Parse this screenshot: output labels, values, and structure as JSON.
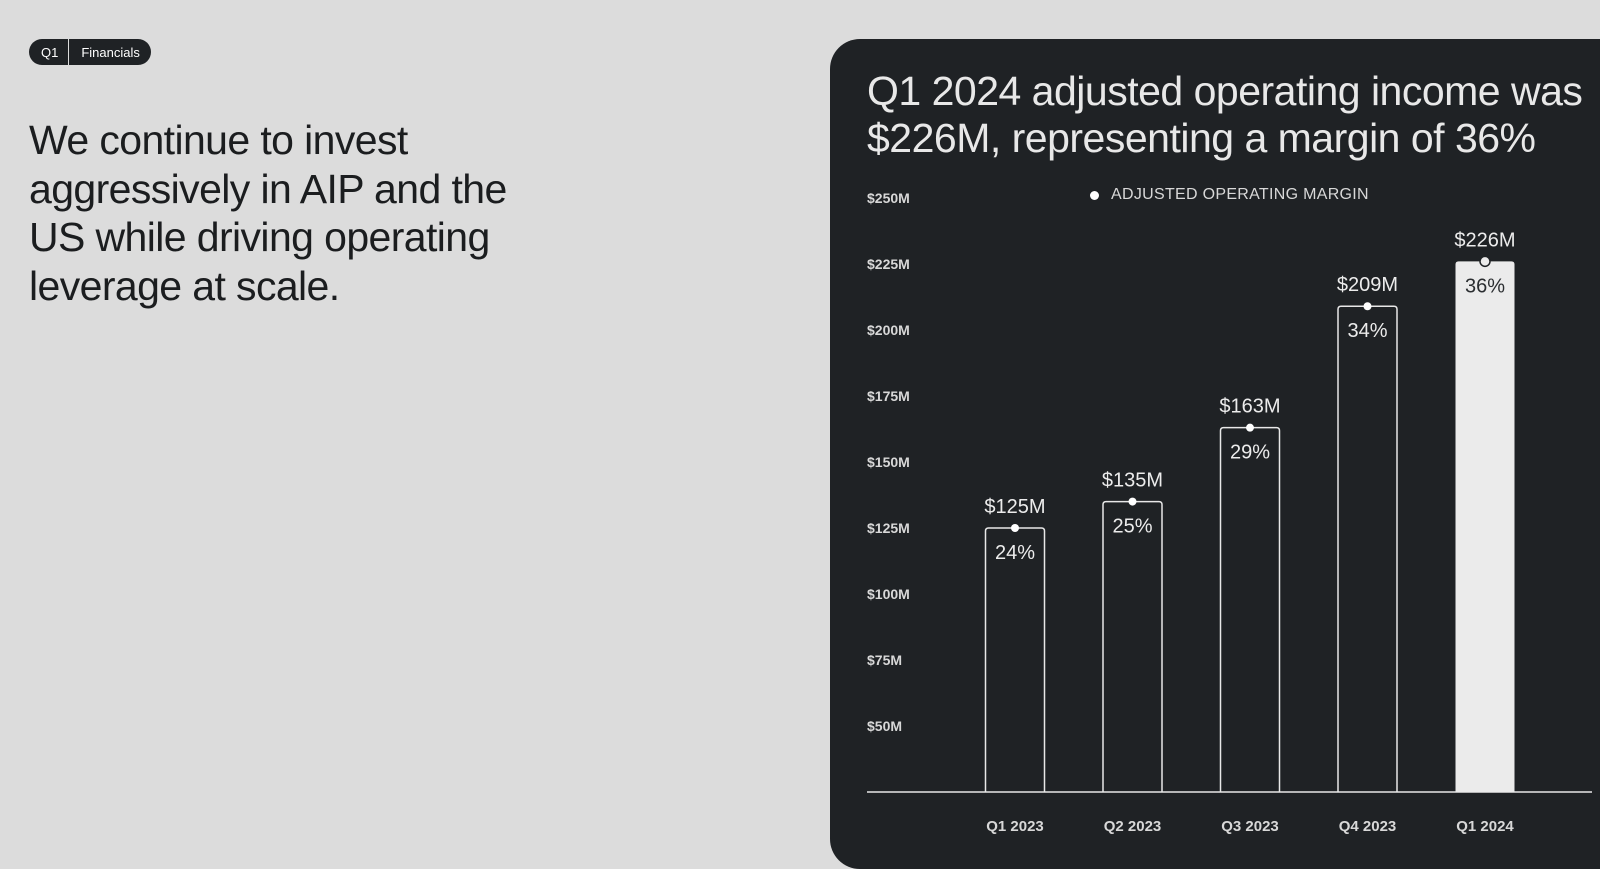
{
  "tag": {
    "quarter": "Q1",
    "section": "Financials"
  },
  "headline": "We continue to invest aggressively in AIP and the US while driving operating leverage at scale.",
  "panel": {
    "title": "Q1 2024 adjusted operating income was $226M, representing a margin of 36%"
  },
  "colors": {
    "page_bg": "#dcdcdc",
    "panel_bg": "#1f2225",
    "bar_outline": "#e8e8e8",
    "highlight_bar": "#ebebeb"
  },
  "chart_data": {
    "type": "bar",
    "categories": [
      "Q1 2023",
      "Q2 2023",
      "Q3 2023",
      "Q4 2023",
      "Q1 2024"
    ],
    "values": [
      125,
      135,
      163,
      209,
      226
    ],
    "value_labels": [
      "$125M",
      "$135M",
      "$163M",
      "$209M",
      "$226M"
    ],
    "margins": [
      "24%",
      "25%",
      "29%",
      "34%",
      "36%"
    ],
    "legend": "ADJUSTED OPERATING MARGIN",
    "y_ticks": [
      50,
      75,
      100,
      125,
      150,
      175,
      200,
      225,
      250
    ],
    "y_tick_labels": [
      "$50M",
      "$75M",
      "$100M",
      "$125M",
      "$150M",
      "$175M",
      "$200M",
      "$225M",
      "$250M"
    ],
    "ylim": [
      25,
      250
    ],
    "highlight_index": 4,
    "grid": false
  }
}
